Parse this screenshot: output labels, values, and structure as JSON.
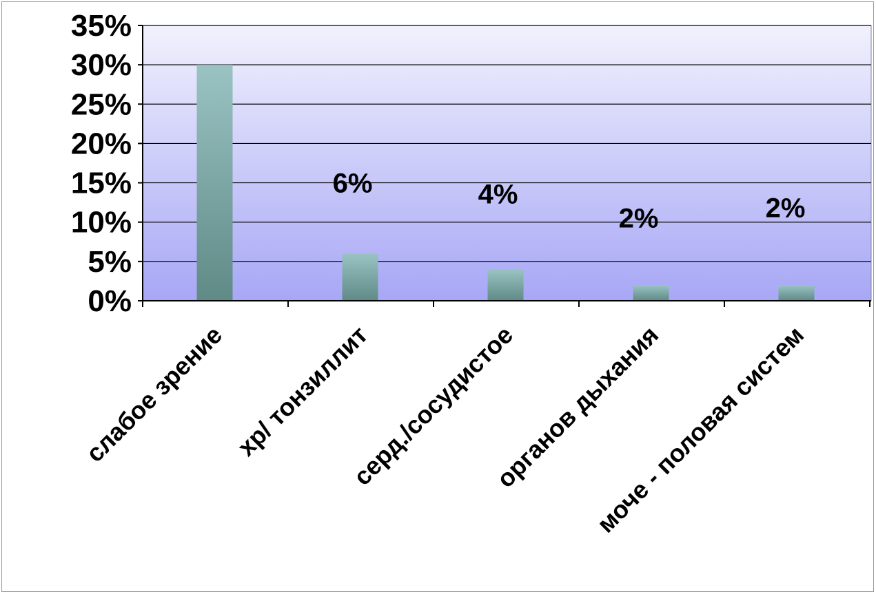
{
  "chart_data": {
    "type": "bar",
    "categories": [
      "слабое зрение",
      "хр/ тонзиллит",
      "серд./сосудистое",
      "органов дыхания",
      "моче - половая систем"
    ],
    "series": [
      {
        "values": [
          30,
          6,
          4,
          2,
          2
        ]
      }
    ],
    "data_labels": [
      "",
      "6%",
      "4%",
      "2%",
      "2%"
    ],
    "ylim": [
      0,
      35
    ],
    "y_ticks": [
      "0%",
      "5%",
      "10%",
      "15%",
      "20%",
      "25%",
      "30%",
      "35%"
    ],
    "y_tick_values": [
      0,
      5,
      10,
      15,
      20,
      25,
      30,
      35
    ],
    "title": "",
    "xlabel": "",
    "ylabel": "",
    "grid": true,
    "legend": "none",
    "colors": {
      "plot_bg_top": "#f1f1fd",
      "plot_bg_bottom": "#a7a7f6",
      "bar_top": "#9ac3c3",
      "bar_bottom": "#5f8a86",
      "grid": "#000000",
      "frame_border": "#d98080"
    }
  }
}
